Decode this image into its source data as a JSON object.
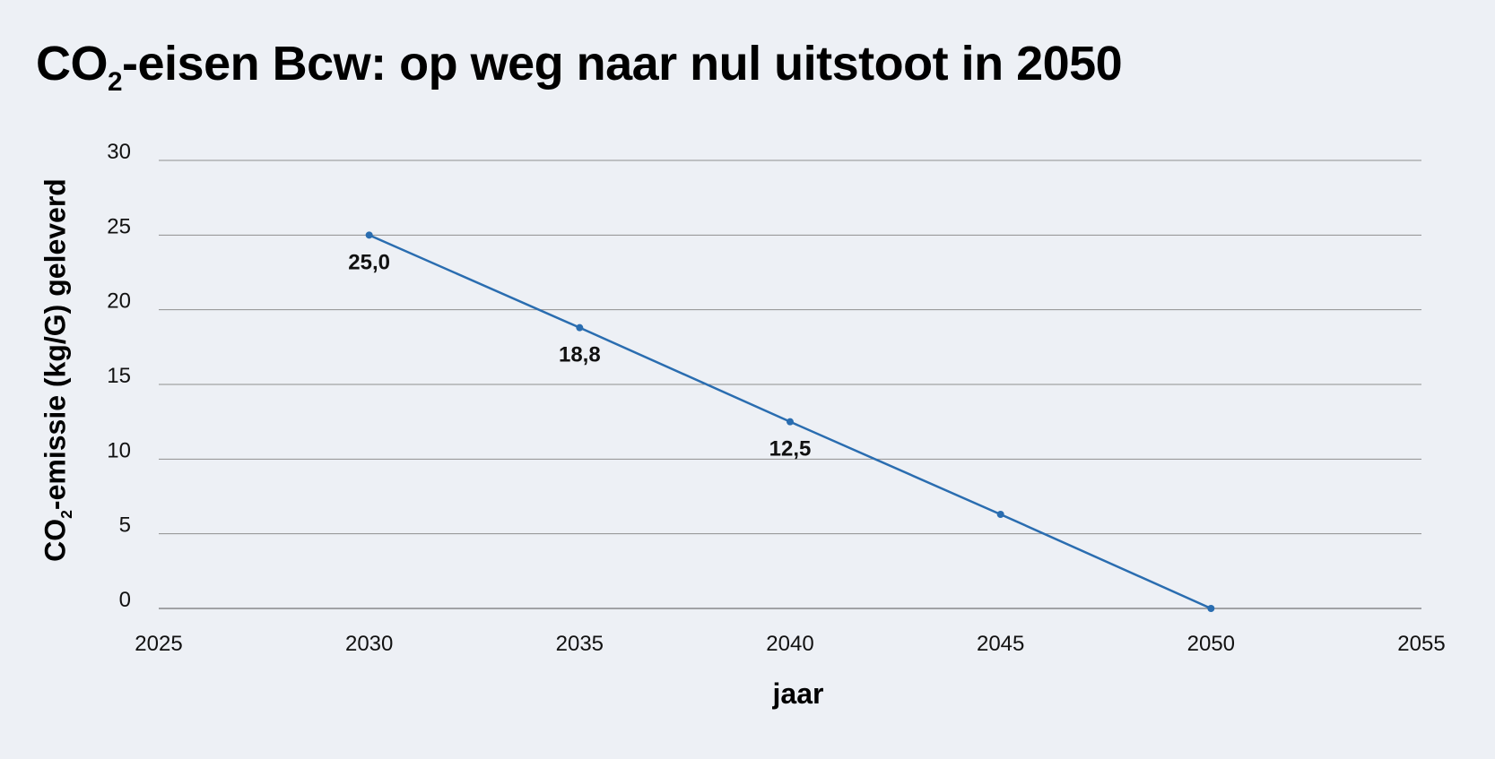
{
  "chart_data": {
    "type": "line",
    "title_prefix": "CO",
    "title_sub": "2",
    "title_suffix": "-eisen Bcw: op weg naar nul uitstoot in 2050",
    "xlabel": "jaar",
    "ylabel_prefix": "CO",
    "ylabel_sub": "2",
    "ylabel_suffix": "-emissie (kg/G) geleverd",
    "xlim": [
      2025,
      2055
    ],
    "ylim": [
      0,
      30
    ],
    "xticks": [
      2025,
      2030,
      2035,
      2040,
      2045,
      2050,
      2055
    ],
    "yticks": [
      0,
      5,
      10,
      15,
      20,
      25,
      30
    ],
    "grid": "horizontal",
    "legend": "none",
    "line_color": "#2a6db0",
    "series": [
      {
        "x": [
          2030,
          2035,
          2040,
          2045,
          2050
        ],
        "y": [
          25.0,
          18.8,
          12.5,
          6.3,
          0.0
        ],
        "labels": [
          "25,0",
          "18,8",
          "12,5",
          "",
          ""
        ]
      }
    ]
  }
}
